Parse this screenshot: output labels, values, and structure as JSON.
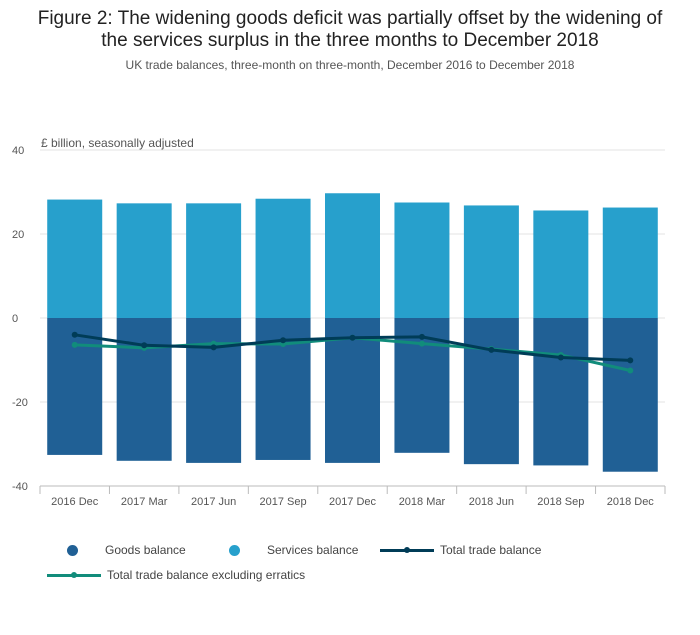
{
  "figure": {
    "title": "Figure 2: The widening goods deficit was partially offset by the widening of the services surplus in the three months to December 2018",
    "subtitle": "UK trade balances, three-month on three-month, December 2016 to December 2018"
  },
  "chart_data": {
    "type": "bar",
    "ylabel": "£ billion, seasonally adjusted",
    "ylim": [
      -40,
      40
    ],
    "yticks": [
      40,
      20,
      0,
      -20,
      -40
    ],
    "grid": true,
    "legend_position": "bottom",
    "categories": [
      "2016 Dec",
      "2017 Mar",
      "2017 Jun",
      "2017 Sep",
      "2017 Dec",
      "2018 Mar",
      "2018 Jun",
      "2018 Sep",
      "2018 Dec"
    ],
    "series": [
      {
        "name": "Goods balance",
        "kind": "bar",
        "color": "#206095",
        "values": [
          -32.6,
          -34.0,
          -34.5,
          -33.8,
          -34.5,
          -32.1,
          -34.8,
          -35.1,
          -36.6
        ]
      },
      {
        "name": "Services balance",
        "kind": "bar",
        "color": "#27a0cc",
        "values": [
          28.2,
          27.3,
          27.3,
          28.4,
          29.7,
          27.5,
          26.8,
          25.6,
          26.3
        ]
      },
      {
        "name": "Total trade balance",
        "kind": "line",
        "color": "#003c57",
        "values": [
          -4.0,
          -6.5,
          -7.0,
          -5.3,
          -4.7,
          -4.5,
          -7.6,
          -9.4,
          -10.1
        ]
      },
      {
        "name": "Total trade balance excluding erratics",
        "kind": "line",
        "color": "#118c7b",
        "values": [
          -6.4,
          -7.1,
          -6.1,
          -6.2,
          -4.7,
          -6.1,
          -7.4,
          -8.8,
          -12.5
        ]
      }
    ]
  }
}
